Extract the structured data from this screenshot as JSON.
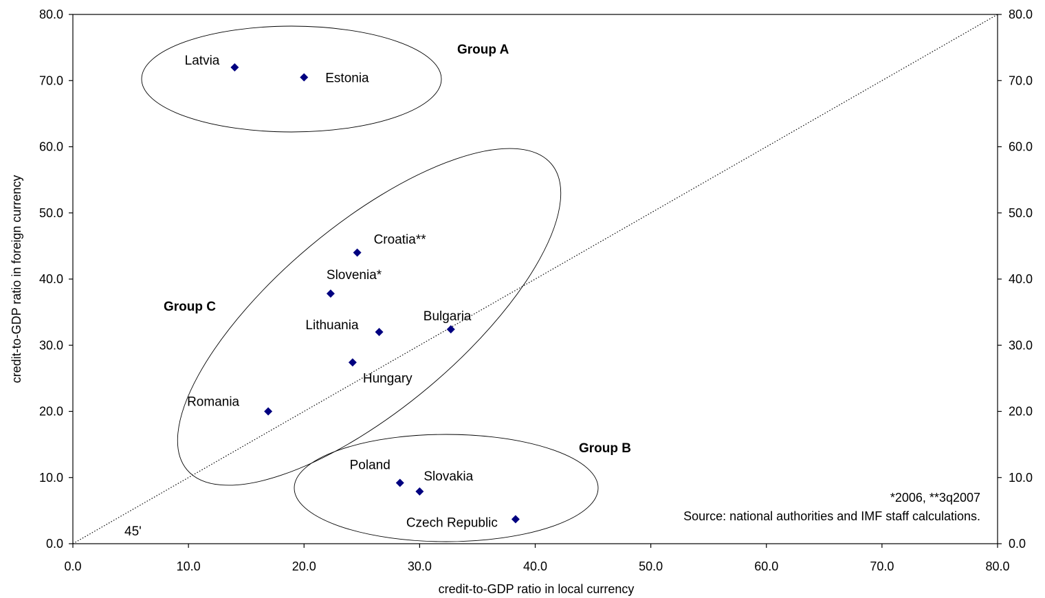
{
  "chart_data": {
    "type": "scatter",
    "xlabel": "credit-to-GDP ratio in local currency",
    "ylabel": "credit-to-GDP ratio in foreign currency",
    "xlim": [
      0,
      80
    ],
    "ylim": [
      0,
      80
    ],
    "x_ticks": [
      "0.0",
      "10.0",
      "20.0",
      "30.0",
      "40.0",
      "50.0",
      "60.0",
      "70.0",
      "80.0"
    ],
    "y_ticks": [
      "0.0",
      "10.0",
      "20.0",
      "30.0",
      "40.0",
      "50.0",
      "60.0",
      "70.0",
      "80.0"
    ],
    "secondary_y_axis": true,
    "grid": false,
    "legend": "none",
    "marker": "diamond",
    "marker_color": "#000080",
    "points": [
      {
        "label": "Latvia",
        "x": 14.0,
        "y": 72.0
      },
      {
        "label": "Estonia",
        "x": 20.0,
        "y": 70.5
      },
      {
        "label": "Croatia**",
        "x": 24.6,
        "y": 44.0
      },
      {
        "label": "Slovenia*",
        "x": 22.3,
        "y": 37.8
      },
      {
        "label": "Lithuania",
        "x": 26.5,
        "y": 32.0
      },
      {
        "label": "Bulgaria",
        "x": 32.7,
        "y": 32.4
      },
      {
        "label": "Hungary",
        "x": 24.2,
        "y": 27.4
      },
      {
        "label": "Romania",
        "x": 16.9,
        "y": 20.0
      },
      {
        "label": "Poland",
        "x": 28.3,
        "y": 9.2
      },
      {
        "label": "Slovakia",
        "x": 30.0,
        "y": 7.9
      },
      {
        "label": "Czech Republic",
        "x": 38.3,
        "y": 3.7
      }
    ],
    "reference_line": {
      "label": "45'",
      "from": [
        0,
        0
      ],
      "to": [
        80,
        80
      ],
      "style": "dotted"
    },
    "groups": [
      {
        "label": "Group A",
        "members": [
          "Latvia",
          "Estonia"
        ]
      },
      {
        "label": "Group B",
        "members": [
          "Poland",
          "Slovakia",
          "Czech Republic"
        ]
      },
      {
        "label": "Group C",
        "members": [
          "Croatia**",
          "Slovenia*",
          "Lithuania",
          "Bulgaria",
          "Hungary",
          "Romania"
        ]
      }
    ],
    "notes": [
      "*2006, **3q2007",
      "Source: national authorities and IMF staff calculations."
    ]
  }
}
